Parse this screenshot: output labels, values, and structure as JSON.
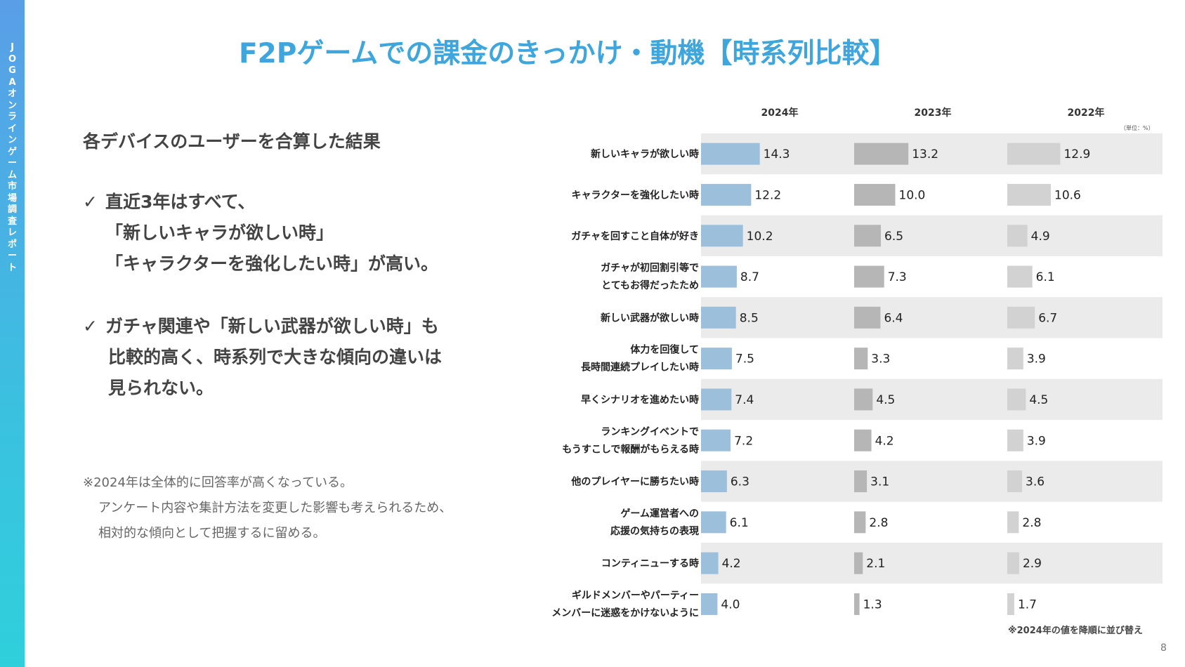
{
  "sidebar": {
    "text": "JOGAオンラインゲーム市場調査レポート"
  },
  "title": "F2Pゲームでの課金のきっかけ・動機【時系列比較】",
  "summary": "各デバイスのユーザーを合算した結果",
  "points": [
    {
      "check": "✓",
      "lines": [
        "直近3年はすべて、",
        "「新しいキャラが欲しい時」",
        "「キャラクターを強化したい時」が高い。"
      ]
    },
    {
      "check": "✓",
      "lines": [
        "ガチャ関連や「新しい武器が欲しい時」も",
        "比較的高く、時系列で大きな傾向の違いは",
        "見られない。"
      ]
    }
  ],
  "note": {
    "line1": "※2024年は全体的に回答率が高くなっている。",
    "line2": "アンケート内容や集計方法を変更した影響も考えられるため、",
    "line3": "相対的な傾向として把握するに留める。"
  },
  "unit": "（単位：%）",
  "sort_note": "※2024年の値を降順に並び替え",
  "page_number": "8",
  "colors": {
    "title": "#3fa6dd",
    "bar_2024": "#9cc0dc",
    "bar_2023": "#b6b6b6",
    "bar_2022": "#d2d2d2",
    "row_band": "#ebebeb"
  },
  "chart_data": {
    "type": "bar",
    "orientation": "horizontal",
    "categories": [
      [
        "新しいキャラが欲しい時"
      ],
      [
        "キャラクターを強化したい時"
      ],
      [
        "ガチャを回すこと自体が好き"
      ],
      [
        "ガチャが初回割引等で",
        "とてもお得だったため"
      ],
      [
        "新しい武器が欲しい時"
      ],
      [
        "体力を回復して",
        "長時間連続プレイしたい時"
      ],
      [
        "早くシナリオを進めたい時"
      ],
      [
        "ランキングイベントで",
        "もうすこしで報酬がもらえる時"
      ],
      [
        "他のプレイヤーに勝ちたい時"
      ],
      [
        "ゲーム運営者への",
        "応援の気持ちの表現"
      ],
      [
        "コンティニューする時"
      ],
      [
        "ギルドメンバーやパーティー",
        "メンバーに迷惑をかけないように"
      ]
    ],
    "series": [
      {
        "name": "2024年",
        "values": [
          14.3,
          12.2,
          10.2,
          8.7,
          8.5,
          7.5,
          7.4,
          7.2,
          6.3,
          6.1,
          4.2,
          4.0
        ],
        "labels": [
          "14.3",
          "12.2",
          "10.2",
          "8.7",
          "8.5",
          "7.5",
          "7.4",
          "7.2",
          "6.3",
          "6.1",
          "4.2",
          "4.0"
        ]
      },
      {
        "name": "2023年",
        "values": [
          13.2,
          10.0,
          6.5,
          7.3,
          6.4,
          3.3,
          4.5,
          4.2,
          3.1,
          2.8,
          2.1,
          1.3
        ],
        "labels": [
          "13.2",
          "10.0",
          "6.5",
          "7.3",
          "6.4",
          "3.3",
          "4.5",
          "4.2",
          "3.1",
          "2.8",
          "2.1",
          "1.3"
        ]
      },
      {
        "name": "2022年",
        "values": [
          12.9,
          10.6,
          4.9,
          6.1,
          6.7,
          3.9,
          4.5,
          3.9,
          3.6,
          2.8,
          2.9,
          1.7
        ],
        "labels": [
          "12.9",
          "10.6",
          "4.9",
          "6.1",
          "6.7",
          "3.9",
          "4.5",
          "3.9",
          "3.6",
          "2.8",
          "2.9",
          "1.7"
        ]
      }
    ],
    "legend": "none",
    "banded_rows": true
  }
}
